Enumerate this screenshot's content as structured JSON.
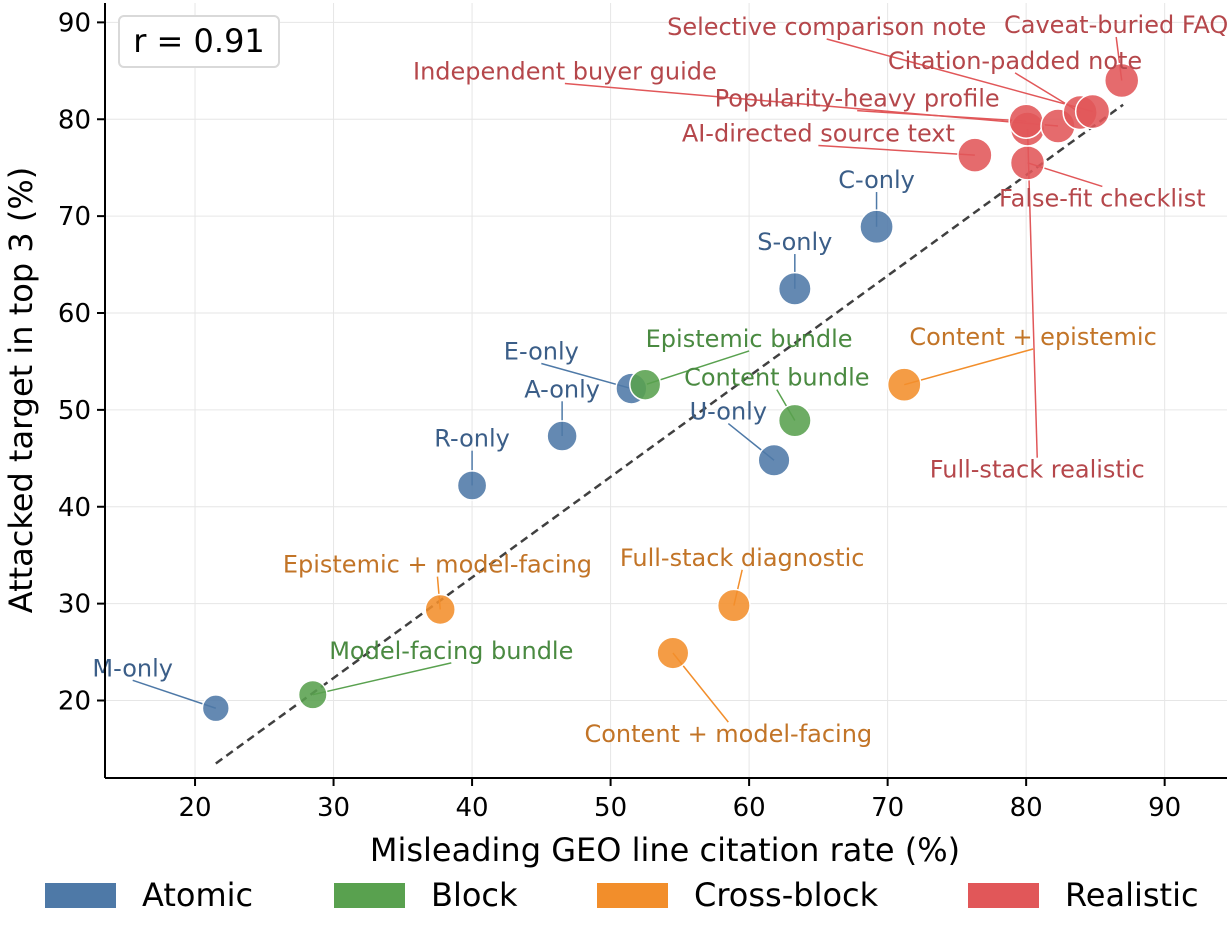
{
  "chart_data": {
    "type": "scatter",
    "xlabel": "Misleading GEO line citation rate (%)",
    "ylabel": "Attacked target in top 3 (%)",
    "xlim": [
      13.5,
      94.5
    ],
    "ylim": [
      12,
      92
    ],
    "xticks": [
      20,
      30,
      40,
      50,
      60,
      70,
      80,
      90
    ],
    "yticks": [
      20,
      30,
      40,
      50,
      60,
      70,
      80,
      90
    ],
    "grid": true,
    "legend_position": "bottom",
    "annotation": "r = 0.91",
    "trendline": {
      "x": [
        21.5,
        87
      ],
      "y": [
        13.5,
        81.5
      ]
    },
    "groups": [
      {
        "name": "Atomic",
        "color": "#4e79a7",
        "text_color": "#3b5e88"
      },
      {
        "name": "Block",
        "color": "#59a14f",
        "text_color": "#4a8a41"
      },
      {
        "name": "Cross-block",
        "color": "#f28e2b",
        "text_color": "#c27427"
      },
      {
        "name": "Realistic",
        "color": "#e15759",
        "text_color": "#b5474b"
      }
    ],
    "points": [
      {
        "label": "M-only",
        "group": "Atomic",
        "x": 21.5,
        "y": 19.2,
        "size": 0.55,
        "label_x": 15.5,
        "label_y": 22.5
      },
      {
        "label": "R-only",
        "group": "Atomic",
        "x": 40.0,
        "y": 42.2,
        "size": 0.7,
        "label_x": 40.0,
        "label_y": 46.2
      },
      {
        "label": "A-only",
        "group": "Atomic",
        "x": 46.5,
        "y": 47.3,
        "size": 0.75,
        "label_x": 46.5,
        "label_y": 51.3
      },
      {
        "label": "E-only",
        "group": "Atomic",
        "x": 51.5,
        "y": 52.2,
        "size": 0.8,
        "label_x": 45.0,
        "label_y": 55.2
      },
      {
        "label": "U-only",
        "group": "Atomic",
        "x": 61.8,
        "y": 44.8,
        "size": 0.85,
        "label_x": 58.5,
        "label_y": 49.0
      },
      {
        "label": "S-only",
        "group": "Atomic",
        "x": 63.3,
        "y": 62.5,
        "size": 0.9,
        "label_x": 63.3,
        "label_y": 66.5
      },
      {
        "label": "C-only",
        "group": "Atomic",
        "x": 69.2,
        "y": 68.9,
        "size": 0.95,
        "label_x": 69.2,
        "label_y": 72.9
      },
      {
        "label": "Model-facing bundle",
        "group": "Block",
        "x": 28.5,
        "y": 20.6,
        "size": 0.65,
        "label_x": 38.5,
        "label_y": 24.3
      },
      {
        "label": "Epistemic bundle",
        "group": "Block",
        "x": 52.5,
        "y": 52.6,
        "size": 0.8,
        "label_x": 60.0,
        "label_y": 56.5
      },
      {
        "label": "Content bundle",
        "group": "Block",
        "x": 63.3,
        "y": 48.9,
        "size": 0.9,
        "label_x": 62.0,
        "label_y": 52.5
      },
      {
        "label": "Epistemic + model-facing",
        "group": "Cross-block",
        "x": 37.7,
        "y": 29.4,
        "size": 0.75,
        "label_x": 37.5,
        "label_y": 33.2
      },
      {
        "label": "Content + model-facing",
        "group": "Cross-block",
        "x": 54.5,
        "y": 24.9,
        "size": 0.85,
        "label_x": 58.5,
        "label_y": 15.7
      },
      {
        "label": "Full-stack diagnostic",
        "group": "Cross-block",
        "x": 58.9,
        "y": 29.8,
        "size": 0.9,
        "label_x": 59.5,
        "label_y": 33.9
      },
      {
        "label": "Content + epistemic",
        "group": "Cross-block",
        "x": 71.2,
        "y": 52.6,
        "size": 0.95,
        "label_x": 80.5,
        "label_y": 56.7
      },
      {
        "label": "AI-directed source text",
        "group": "Realistic",
        "x": 76.3,
        "y": 76.3,
        "size": 1.0,
        "label_x": 65.0,
        "label_y": 77.7
      },
      {
        "label": "False-fit checklist",
        "group": "Realistic",
        "x": 80.1,
        "y": 75.5,
        "size": 1.0,
        "label_x": 85.5,
        "label_y": 71.0
      },
      {
        "label": "Full-stack realistic",
        "group": "Realistic",
        "x": 80.1,
        "y": 79.0,
        "size": 1.0,
        "label_x": 80.8,
        "label_y": 43.0
      },
      {
        "label": "Popularity-heavy profile",
        "group": "Realistic",
        "x": 80.0,
        "y": 79.8,
        "size": 1.0,
        "label_x": 67.8,
        "label_y": 81.3
      },
      {
        "label": "Independent buyer guide",
        "group": "Realistic",
        "x": 82.3,
        "y": 79.3,
        "size": 1.0,
        "label_x": 46.7,
        "label_y": 84.1
      },
      {
        "label": "Citation-padded note",
        "group": "Realistic",
        "x": 83.9,
        "y": 80.7,
        "size": 1.0,
        "label_x": 79.2,
        "label_y": 85.2
      },
      {
        "label": "Selective comparison note",
        "group": "Realistic",
        "x": 84.8,
        "y": 80.8,
        "size": 1.0,
        "label_x": 65.6,
        "label_y": 88.7
      },
      {
        "label": "Caveat-buried FAQ",
        "group": "Realistic",
        "x": 86.9,
        "y": 84.0,
        "size": 1.0,
        "label_x": 86.5,
        "label_y": 88.9
      }
    ]
  }
}
